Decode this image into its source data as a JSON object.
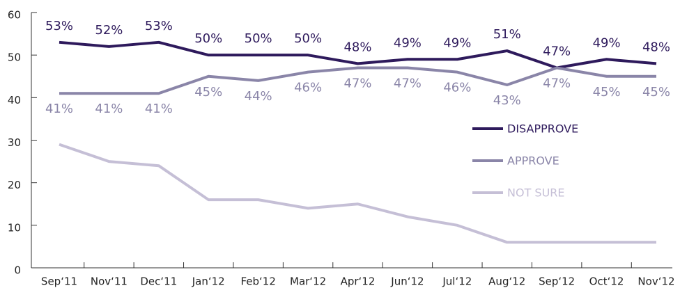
{
  "chart_data": {
    "type": "line",
    "categories": [
      "Sep‘11",
      "Nov‘11",
      "Dec‘11",
      "Jan‘12",
      "Feb‘12",
      "Mar‘12",
      "Apr‘12",
      "Jun‘12",
      "Jul‘12",
      "Aug‘12",
      "Sep‘12",
      "Oct‘12",
      "Nov‘12"
    ],
    "series": [
      {
        "name": "DISAPPROVE",
        "color": "#2e1a5c",
        "values": [
          53,
          52,
          53,
          50,
          50,
          50,
          48,
          49,
          49,
          51,
          47,
          49,
          48
        ],
        "value_labels": [
          "53%",
          "52%",
          "53%",
          "50%",
          "50%",
          "50%",
          "48%",
          "49%",
          "49%",
          "51%",
          "47%",
          "49%",
          "48%"
        ]
      },
      {
        "name": "APPROVE",
        "color": "#8a85a8",
        "values": [
          41,
          41,
          41,
          45,
          44,
          46,
          47,
          47,
          46,
          43,
          47,
          45,
          45
        ],
        "value_labels": [
          "41%",
          "41%",
          "41%",
          "45%",
          "44%",
          "46%",
          "47%",
          "47%",
          "46%",
          "43%",
          "47%",
          "45%",
          "45%"
        ]
      },
      {
        "name": "NOT SURE",
        "color": "#c5bfd6",
        "values": [
          29,
          25,
          24,
          16,
          16,
          14,
          15,
          12,
          10,
          6,
          6,
          6,
          6
        ]
      }
    ],
    "ylim": [
      0,
      60
    ],
    "yticks": [
      0,
      10,
      20,
      30,
      40,
      50,
      60
    ],
    "legend": "right"
  }
}
